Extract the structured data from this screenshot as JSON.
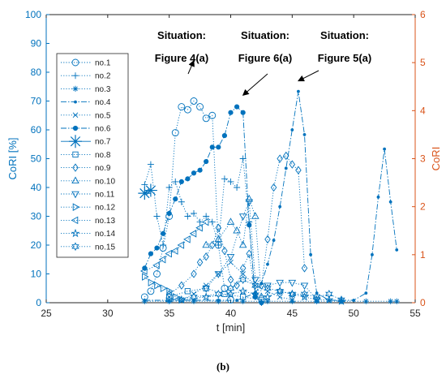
{
  "chart_data": {
    "type": "line",
    "title": "",
    "xlabel": "t [min]",
    "ylabel_left": "CoRI [%]",
    "ylabel_right": "CoRI",
    "xlim": [
      25,
      55
    ],
    "ylim_left": [
      0,
      100
    ],
    "ylim_right": [
      0,
      6
    ],
    "x_ticks": [
      25,
      30,
      35,
      40,
      45,
      50,
      55
    ],
    "y_ticks_left": [
      0,
      10,
      20,
      30,
      40,
      50,
      60,
      70,
      80,
      90,
      100
    ],
    "y_ticks_right": [
      0,
      1,
      2,
      3,
      4,
      5,
      6
    ],
    "grid": false,
    "legend_position": "top-left",
    "colors": {
      "series": "#0072BD",
      "right_axis": "#D95319",
      "annotation": "#000000"
    },
    "series": [
      {
        "name": "no.1",
        "marker": "circle",
        "line": "dotted",
        "axis": "left",
        "x": [
          33.0,
          33.5,
          34.0,
          34.5,
          35.0,
          35.5,
          36.0,
          36.5,
          37.0,
          37.5,
          38.0,
          38.5,
          39.0,
          39.5,
          40.0
        ],
        "y": [
          2,
          4,
          10,
          19,
          30,
          59,
          68,
          67,
          70,
          68,
          64,
          65,
          20,
          5,
          1
        ]
      },
      {
        "name": "no.2",
        "marker": "plus",
        "line": "dotted",
        "axis": "left",
        "x": [
          33.0,
          33.5,
          34.0,
          34.5,
          35.0,
          35.5,
          36.0,
          36.5,
          37.0,
          37.5,
          38.0,
          38.5,
          39.0,
          39.5,
          40.0,
          40.5,
          41.0,
          41.5,
          42.0,
          42.5
        ],
        "y": [
          41,
          48,
          30,
          20,
          40,
          42,
          35,
          30,
          31,
          28,
          30,
          28,
          20,
          43,
          42,
          40,
          50,
          28,
          2,
          0
        ]
      },
      {
        "name": "no.3",
        "marker": "asterisk",
        "line": "dotted",
        "axis": "left",
        "x": [
          33.0,
          35.0,
          37.0,
          39.0,
          41.0,
          43.0,
          45.0,
          47.0,
          49.0,
          51.0,
          53.0,
          53.5
        ],
        "y": [
          0.5,
          0.5,
          0.5,
          0.5,
          0.5,
          0.5,
          0.5,
          0.5,
          0.5,
          0.5,
          0.5,
          0.5
        ]
      },
      {
        "name": "no.4",
        "marker": "dot",
        "line": "dashdot",
        "axis": "right",
        "x": [
          33.0,
          35.0,
          37.0,
          39.0,
          40.5,
          42.0,
          42.5,
          43.0,
          43.5,
          44.0,
          44.5,
          45.0,
          45.5,
          46.0,
          46.5,
          47.0,
          48.0,
          49.0,
          50.0,
          51.0,
          51.5,
          52.0,
          52.5,
          53.0,
          53.5
        ],
        "y": [
          0.05,
          0.05,
          0.05,
          0.05,
          0.05,
          0.2,
          0.4,
          0.8,
          1.3,
          2.0,
          2.8,
          3.6,
          4.4,
          3.5,
          1.0,
          0.2,
          0.05,
          0.05,
          0.05,
          0.2,
          1.0,
          2.2,
          3.2,
          2.1,
          1.1
        ]
      },
      {
        "name": "no.5",
        "marker": "cross",
        "line": "dotted",
        "axis": "left",
        "x": [
          36.0,
          37.0,
          38.0,
          39.0,
          40.0,
          41.0,
          42.0,
          43.0,
          44.0,
          45.0
        ],
        "y": [
          1,
          3,
          6,
          10,
          14,
          10,
          6,
          4,
          2,
          1
        ]
      },
      {
        "name": "no.6",
        "marker": "filled-circle",
        "line": "dashdot",
        "axis": "left",
        "x": [
          33.0,
          33.5,
          34.0,
          34.5,
          35.0,
          35.5,
          36.0,
          36.5,
          37.0,
          37.5,
          38.0,
          38.5,
          39.0,
          39.5,
          40.0,
          40.5,
          41.0,
          41.5,
          42.0,
          42.5
        ],
        "y": [
          12,
          17,
          19,
          24,
          31,
          36,
          42,
          43,
          45,
          46,
          49,
          54,
          54,
          58,
          66,
          68,
          66,
          27,
          2,
          0
        ]
      },
      {
        "name": "no.7",
        "marker": "big-asterisk",
        "line": "solid",
        "axis": "left",
        "x": [
          33.0,
          33.5
        ],
        "y": [
          38,
          39
        ]
      },
      {
        "name": "no.8",
        "marker": "square",
        "line": "dotted",
        "axis": "left",
        "x": [
          35.0,
          36.5,
          38.0,
          39.5,
          41.0,
          42.5
        ],
        "y": [
          2,
          4,
          5,
          3,
          2,
          1
        ]
      },
      {
        "name": "no.9",
        "marker": "diamond",
        "line": "dotted",
        "axis": "left",
        "x": [
          35.0,
          36.0,
          37.0,
          37.5,
          38.0,
          38.5,
          39.0,
          39.5,
          40.0,
          40.5,
          41.0,
          41.5,
          42.0,
          42.5,
          43.0,
          43.5,
          44.0,
          44.5,
          45.0,
          45.5,
          46.0
        ],
        "y": [
          3,
          6,
          10,
          14,
          16,
          20,
          26,
          18,
          8,
          6,
          12,
          17,
          3,
          6,
          22,
          40,
          50,
          51,
          48,
          46,
          12
        ]
      },
      {
        "name": "no.10",
        "marker": "triangle-up",
        "line": "dotted",
        "axis": "left",
        "x": [
          38.0,
          39.0,
          40.0,
          40.5,
          41.0,
          41.5,
          42.0,
          42.5
        ],
        "y": [
          20,
          22,
          28,
          25,
          20,
          36,
          30,
          2
        ]
      },
      {
        "name": "no.11",
        "marker": "triangle-down",
        "line": "dotted",
        "axis": "left",
        "x": [
          38.0,
          39.0,
          40.0,
          41.0,
          41.5,
          42.0,
          43.0,
          44.0,
          45.0,
          46.0,
          47.0
        ],
        "y": [
          5,
          10,
          16,
          30,
          35,
          8,
          6,
          7,
          7,
          6,
          1
        ]
      },
      {
        "name": "no.12",
        "marker": "triangle-right",
        "line": "dotted",
        "axis": "left",
        "x": [
          33.0,
          33.5,
          34.0,
          34.5,
          35.0,
          35.5,
          36.0
        ],
        "y": [
          9,
          7,
          6,
          5,
          4,
          2,
          1
        ]
      },
      {
        "name": "no.13",
        "marker": "triangle-left",
        "line": "dotted",
        "axis": "left",
        "x": [
          33.0,
          34.0,
          34.5,
          35.0,
          35.5,
          36.0,
          36.5,
          37.0,
          37.5,
          38.0
        ],
        "y": [
          11,
          13,
          15,
          17,
          18,
          20,
          22,
          24,
          26,
          28
        ]
      },
      {
        "name": "no.14",
        "marker": "pentagram",
        "line": "dotted",
        "axis": "left",
        "x": [
          36.0,
          38.0,
          40.0,
          41.0,
          42.0,
          43.0,
          44.0,
          45.0,
          46.0,
          47.0,
          48.0,
          49.0
        ],
        "y": [
          1,
          2,
          3,
          4,
          3,
          2,
          4,
          3,
          2,
          1,
          1,
          0.5
        ]
      },
      {
        "name": "no.15",
        "marker": "hexagram",
        "line": "dotted",
        "axis": "left",
        "x": [
          35.0,
          37.0,
          39.0,
          40.0,
          41.0,
          42.0,
          43.0,
          44.0,
          45.0,
          46.0,
          47.0,
          48.0,
          49.0
        ],
        "y": [
          1,
          2,
          3,
          5,
          8,
          6,
          5,
          4,
          3,
          3,
          2,
          3,
          1
        ]
      }
    ],
    "annotations": [
      {
        "lines": [
          "Situation:",
          "Figure 4(a)"
        ],
        "point_to": [
          37.0,
          84
        ]
      },
      {
        "lines": [
          "Situation:",
          "Figure 6(a)"
        ],
        "point_to": [
          41.0,
          72
        ]
      },
      {
        "lines": [
          "Situation:",
          "Figure 5(a)"
        ],
        "point_to": [
          45.5,
          77
        ]
      }
    ]
  },
  "caption": "(b)"
}
